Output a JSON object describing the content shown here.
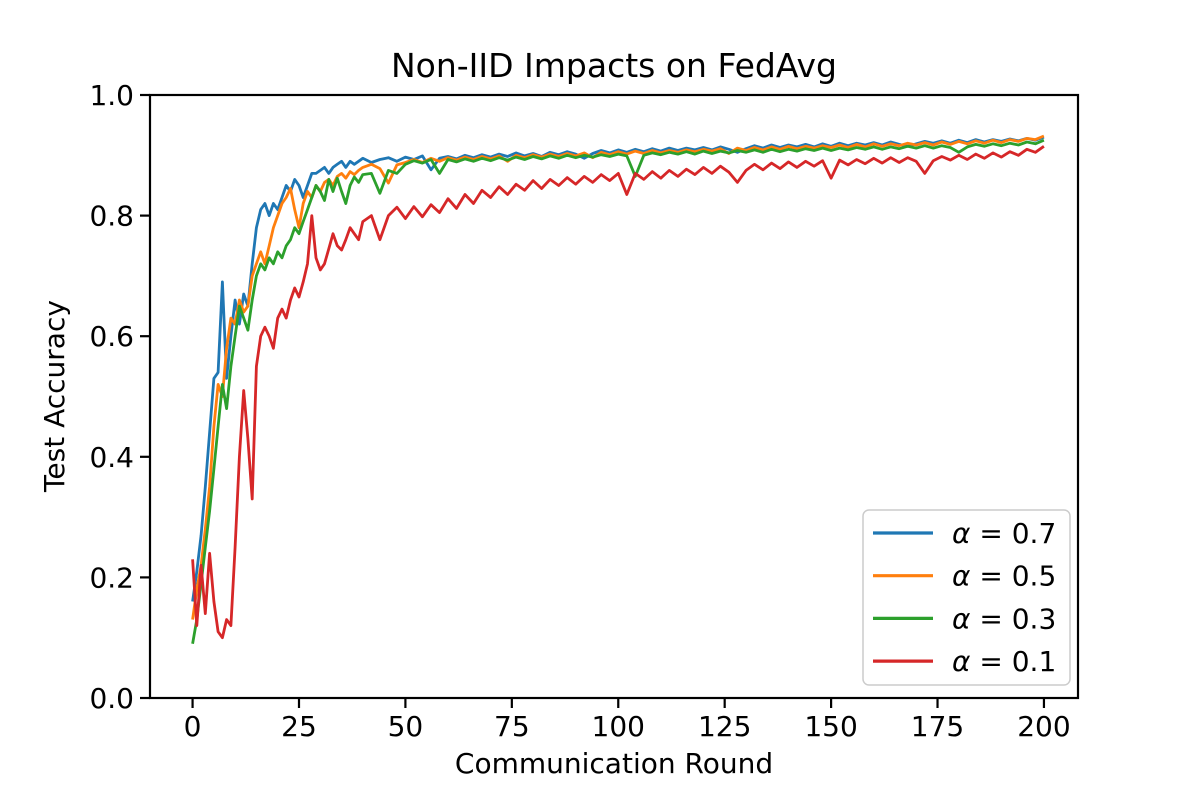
{
  "chart_data": {
    "type": "line",
    "title": "Non-IID Impacts on FedAvg",
    "xlabel": "Communication Round",
    "ylabel": "Test Accuracy",
    "xlim": [
      -10,
      208
    ],
    "ylim": [
      0.0,
      1.0
    ],
    "xticks": [
      0,
      25,
      50,
      75,
      100,
      125,
      150,
      175,
      200
    ],
    "xtick_labels": [
      "0",
      "25",
      "50",
      "75",
      "100",
      "125",
      "150",
      "175",
      "200"
    ],
    "yticks": [
      0.0,
      0.2,
      0.4,
      0.6,
      0.8,
      1.0
    ],
    "ytick_labels": [
      "0.0",
      "0.2",
      "0.4",
      "0.6",
      "0.8",
      "1.0"
    ],
    "grid": false,
    "background_color": "#ffffff",
    "spine_color": "#000000",
    "legend_position": "lower right",
    "legend_border_color": "#cccccc",
    "x": [
      0,
      1,
      2,
      3,
      4,
      5,
      6,
      7,
      8,
      9,
      10,
      11,
      12,
      13,
      14,
      15,
      16,
      17,
      18,
      19,
      20,
      21,
      22,
      23,
      24,
      25,
      26,
      27,
      28,
      29,
      30,
      31,
      32,
      33,
      34,
      35,
      36,
      37,
      38,
      39,
      40,
      42,
      44,
      46,
      48,
      50,
      52,
      54,
      56,
      58,
      60,
      62,
      64,
      66,
      68,
      70,
      72,
      74,
      76,
      78,
      80,
      82,
      84,
      86,
      88,
      90,
      92,
      94,
      96,
      98,
      100,
      102,
      104,
      106,
      108,
      110,
      112,
      114,
      116,
      118,
      120,
      122,
      124,
      126,
      128,
      130,
      132,
      134,
      136,
      138,
      140,
      142,
      144,
      146,
      148,
      150,
      152,
      154,
      156,
      158,
      160,
      162,
      164,
      166,
      168,
      170,
      172,
      174,
      176,
      178,
      180,
      182,
      184,
      186,
      188,
      190,
      192,
      194,
      196,
      198,
      200
    ],
    "series": [
      {
        "name": "α = 0.7",
        "color": "#1f77b4",
        "values": [
          0.16,
          0.21,
          0.27,
          0.35,
          0.44,
          0.53,
          0.54,
          0.69,
          0.53,
          0.6,
          0.66,
          0.62,
          0.67,
          0.65,
          0.72,
          0.78,
          0.81,
          0.82,
          0.8,
          0.82,
          0.81,
          0.83,
          0.85,
          0.84,
          0.86,
          0.85,
          0.83,
          0.85,
          0.87,
          0.87,
          0.875,
          0.88,
          0.87,
          0.88,
          0.885,
          0.89,
          0.88,
          0.89,
          0.885,
          0.89,
          0.895,
          0.888,
          0.893,
          0.896,
          0.89,
          0.897,
          0.893,
          0.899,
          0.876,
          0.895,
          0.898,
          0.894,
          0.9,
          0.896,
          0.901,
          0.897,
          0.902,
          0.898,
          0.904,
          0.899,
          0.903,
          0.898,
          0.905,
          0.901,
          0.906,
          0.902,
          0.895,
          0.903,
          0.908,
          0.904,
          0.909,
          0.905,
          0.91,
          0.906,
          0.911,
          0.907,
          0.912,
          0.908,
          0.912,
          0.909,
          0.913,
          0.909,
          0.914,
          0.91,
          0.905,
          0.911,
          0.916,
          0.912,
          0.917,
          0.913,
          0.917,
          0.914,
          0.918,
          0.914,
          0.919,
          0.915,
          0.92,
          0.916,
          0.92,
          0.917,
          0.921,
          0.917,
          0.922,
          0.918,
          0.915,
          0.919,
          0.923,
          0.92,
          0.924,
          0.92,
          0.925,
          0.921,
          0.926,
          0.922,
          0.926,
          0.923,
          0.927,
          0.924,
          0.928,
          0.925,
          0.93
        ]
      },
      {
        "name": "α = 0.5",
        "color": "#ff7f0e",
        "values": [
          0.13,
          0.18,
          0.22,
          0.28,
          0.35,
          0.45,
          0.52,
          0.5,
          0.58,
          0.63,
          0.62,
          0.66,
          0.64,
          0.65,
          0.7,
          0.72,
          0.74,
          0.72,
          0.75,
          0.78,
          0.8,
          0.82,
          0.83,
          0.845,
          0.81,
          0.78,
          0.82,
          0.84,
          0.83,
          0.85,
          0.84,
          0.855,
          0.86,
          0.85,
          0.865,
          0.87,
          0.862,
          0.873,
          0.868,
          0.875,
          0.88,
          0.885,
          0.878,
          0.854,
          0.884,
          0.888,
          0.893,
          0.888,
          0.895,
          0.89,
          0.896,
          0.892,
          0.897,
          0.893,
          0.898,
          0.894,
          0.899,
          0.89,
          0.9,
          0.896,
          0.901,
          0.897,
          0.902,
          0.898,
          0.903,
          0.899,
          0.904,
          0.896,
          0.905,
          0.901,
          0.906,
          0.902,
          0.907,
          0.903,
          0.908,
          0.904,
          0.908,
          0.905,
          0.909,
          0.906,
          0.91,
          0.907,
          0.911,
          0.903,
          0.912,
          0.908,
          0.913,
          0.909,
          0.914,
          0.91,
          0.915,
          0.911,
          0.915,
          0.912,
          0.916,
          0.913,
          0.917,
          0.913,
          0.918,
          0.914,
          0.919,
          0.915,
          0.919,
          0.916,
          0.92,
          0.917,
          0.921,
          0.917,
          0.922,
          0.918,
          0.923,
          0.919,
          0.924,
          0.92,
          0.925,
          0.921,
          0.926,
          0.923,
          0.928,
          0.926,
          0.932
        ]
      },
      {
        "name": "α = 0.3",
        "color": "#2ca02c",
        "values": [
          0.09,
          0.13,
          0.19,
          0.25,
          0.31,
          0.38,
          0.45,
          0.52,
          0.48,
          0.55,
          0.6,
          0.65,
          0.63,
          0.61,
          0.66,
          0.7,
          0.72,
          0.71,
          0.73,
          0.72,
          0.74,
          0.73,
          0.75,
          0.76,
          0.78,
          0.77,
          0.79,
          0.81,
          0.83,
          0.85,
          0.84,
          0.825,
          0.86,
          0.84,
          0.862,
          0.84,
          0.82,
          0.85,
          0.864,
          0.855,
          0.868,
          0.87,
          0.837,
          0.875,
          0.87,
          0.885,
          0.891,
          0.887,
          0.893,
          0.87,
          0.893,
          0.889,
          0.894,
          0.89,
          0.895,
          0.891,
          0.896,
          0.892,
          0.897,
          0.893,
          0.898,
          0.894,
          0.899,
          0.895,
          0.9,
          0.896,
          0.9,
          0.897,
          0.901,
          0.898,
          0.902,
          0.899,
          0.865,
          0.9,
          0.904,
          0.901,
          0.905,
          0.902,
          0.906,
          0.902,
          0.907,
          0.903,
          0.907,
          0.904,
          0.908,
          0.905,
          0.909,
          0.905,
          0.91,
          0.906,
          0.91,
          0.907,
          0.911,
          0.908,
          0.912,
          0.908,
          0.912,
          0.909,
          0.913,
          0.91,
          0.914,
          0.91,
          0.914,
          0.911,
          0.915,
          0.912,
          0.916,
          0.912,
          0.916,
          0.913,
          0.905,
          0.914,
          0.918,
          0.915,
          0.919,
          0.916,
          0.92,
          0.917,
          0.922,
          0.919,
          0.925
        ]
      },
      {
        "name": "α = 0.1",
        "color": "#d62728",
        "values": [
          0.23,
          0.12,
          0.22,
          0.14,
          0.24,
          0.16,
          0.11,
          0.1,
          0.13,
          0.12,
          0.25,
          0.4,
          0.51,
          0.43,
          0.33,
          0.55,
          0.6,
          0.615,
          0.6,
          0.58,
          0.63,
          0.645,
          0.63,
          0.66,
          0.68,
          0.665,
          0.69,
          0.72,
          0.8,
          0.73,
          0.71,
          0.72,
          0.745,
          0.77,
          0.75,
          0.743,
          0.76,
          0.78,
          0.77,
          0.76,
          0.79,
          0.8,
          0.76,
          0.8,
          0.814,
          0.795,
          0.815,
          0.798,
          0.818,
          0.805,
          0.828,
          0.812,
          0.835,
          0.82,
          0.842,
          0.83,
          0.848,
          0.835,
          0.852,
          0.842,
          0.858,
          0.845,
          0.86,
          0.85,
          0.863,
          0.852,
          0.865,
          0.855,
          0.868,
          0.858,
          0.87,
          0.835,
          0.87,
          0.86,
          0.873,
          0.862,
          0.875,
          0.865,
          0.877,
          0.868,
          0.88,
          0.87,
          0.882,
          0.872,
          0.855,
          0.875,
          0.885,
          0.876,
          0.887,
          0.878,
          0.889,
          0.88,
          0.89,
          0.882,
          0.891,
          0.862,
          0.892,
          0.884,
          0.893,
          0.886,
          0.895,
          0.887,
          0.896,
          0.888,
          0.896,
          0.89,
          0.87,
          0.891,
          0.898,
          0.892,
          0.9,
          0.893,
          0.902,
          0.895,
          0.904,
          0.897,
          0.906,
          0.9,
          0.91,
          0.905,
          0.915
        ]
      }
    ]
  }
}
